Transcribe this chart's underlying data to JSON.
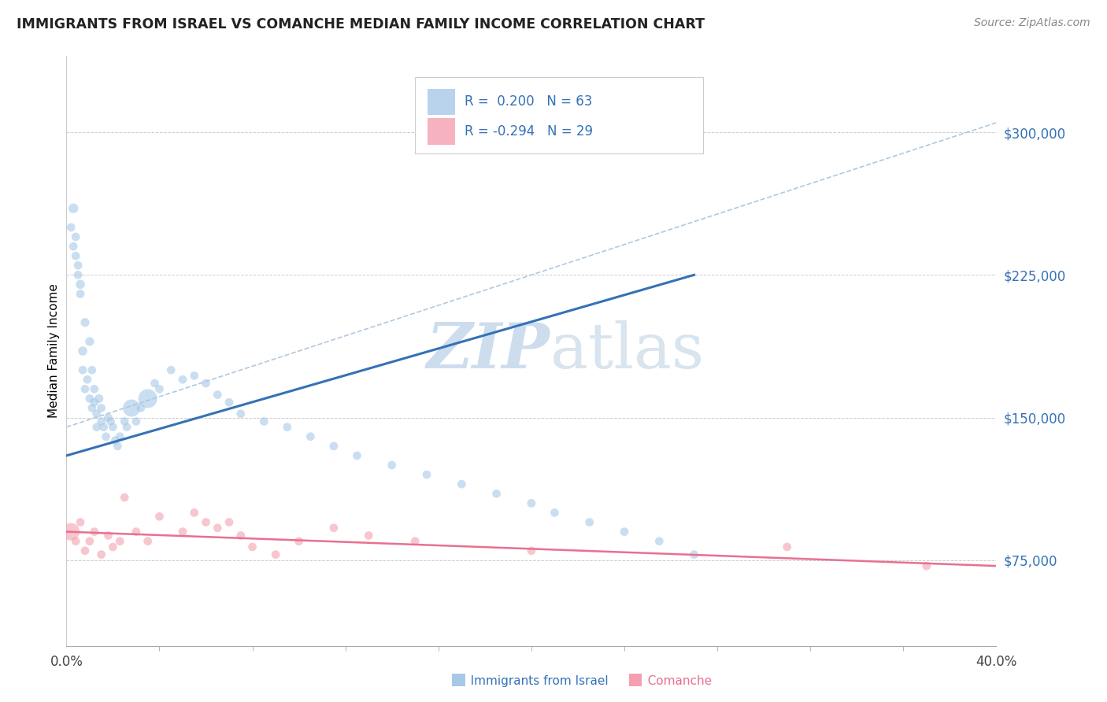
{
  "title": "IMMIGRANTS FROM ISRAEL VS COMANCHE MEDIAN FAMILY INCOME CORRELATION CHART",
  "source": "Source: ZipAtlas.com",
  "ylabel": "Median Family Income",
  "legend_label1": "Immigrants from Israel",
  "legend_label2": "Comanche",
  "r1": 0.2,
  "n1": 63,
  "r2": -0.294,
  "n2": 29,
  "blue_color": "#a8c8e8",
  "pink_color": "#f4a0b0",
  "blue_line_color": "#3472b5",
  "pink_line_color": "#e87090",
  "dashed_line_color": "#b0c8e0",
  "grid_color": "#cccccc",
  "ytick_color": "#3472b5",
  "ytick_labels": [
    "$75,000",
    "$150,000",
    "$225,000",
    "$300,000"
  ],
  "ytick_values": [
    75000,
    150000,
    225000,
    300000
  ],
  "ylim": [
    30000,
    340000
  ],
  "xlim": [
    0.0,
    0.4
  ],
  "blue_scatter_x": [
    0.002,
    0.003,
    0.003,
    0.004,
    0.004,
    0.005,
    0.005,
    0.006,
    0.006,
    0.007,
    0.007,
    0.008,
    0.008,
    0.009,
    0.01,
    0.01,
    0.011,
    0.011,
    0.012,
    0.012,
    0.013,
    0.013,
    0.014,
    0.015,
    0.015,
    0.016,
    0.017,
    0.018,
    0.019,
    0.02,
    0.021,
    0.022,
    0.023,
    0.025,
    0.026,
    0.028,
    0.03,
    0.032,
    0.035,
    0.038,
    0.04,
    0.045,
    0.05,
    0.055,
    0.06,
    0.065,
    0.07,
    0.075,
    0.085,
    0.095,
    0.105,
    0.115,
    0.125,
    0.14,
    0.155,
    0.17,
    0.185,
    0.2,
    0.21,
    0.225,
    0.24,
    0.255,
    0.27
  ],
  "blue_scatter_y": [
    250000,
    260000,
    240000,
    235000,
    245000,
    225000,
    230000,
    215000,
    220000,
    175000,
    185000,
    200000,
    165000,
    170000,
    190000,
    160000,
    175000,
    155000,
    165000,
    158000,
    152000,
    145000,
    160000,
    148000,
    155000,
    145000,
    140000,
    150000,
    148000,
    145000,
    138000,
    135000,
    140000,
    148000,
    145000,
    155000,
    148000,
    155000,
    160000,
    168000,
    165000,
    175000,
    170000,
    172000,
    168000,
    162000,
    158000,
    152000,
    148000,
    145000,
    140000,
    135000,
    130000,
    125000,
    120000,
    115000,
    110000,
    105000,
    100000,
    95000,
    90000,
    85000,
    78000
  ],
  "blue_scatter_sizes": [
    60,
    80,
    60,
    60,
    60,
    60,
    60,
    60,
    70,
    60,
    70,
    65,
    60,
    60,
    65,
    60,
    60,
    60,
    60,
    60,
    60,
    60,
    65,
    60,
    60,
    60,
    60,
    60,
    60,
    60,
    60,
    60,
    60,
    60,
    60,
    250,
    60,
    60,
    300,
    60,
    60,
    60,
    60,
    60,
    60,
    60,
    60,
    60,
    60,
    60,
    60,
    60,
    60,
    60,
    60,
    60,
    60,
    60,
    60,
    60,
    60,
    60,
    60
  ],
  "pink_scatter_x": [
    0.002,
    0.004,
    0.006,
    0.008,
    0.01,
    0.012,
    0.015,
    0.018,
    0.02,
    0.023,
    0.025,
    0.03,
    0.035,
    0.04,
    0.05,
    0.055,
    0.06,
    0.065,
    0.07,
    0.075,
    0.08,
    0.09,
    0.1,
    0.115,
    0.13,
    0.15,
    0.2,
    0.31,
    0.37
  ],
  "pink_scatter_y": [
    90000,
    85000,
    95000,
    80000,
    85000,
    90000,
    78000,
    88000,
    82000,
    85000,
    108000,
    90000,
    85000,
    98000,
    90000,
    100000,
    95000,
    92000,
    95000,
    88000,
    82000,
    78000,
    85000,
    92000,
    88000,
    85000,
    80000,
    82000,
    72000
  ],
  "pink_scatter_sizes": [
    250,
    60,
    60,
    60,
    60,
    60,
    60,
    60,
    60,
    60,
    60,
    60,
    60,
    60,
    60,
    60,
    60,
    60,
    60,
    60,
    60,
    60,
    60,
    60,
    60,
    60,
    60,
    60,
    60
  ],
  "blue_line_x": [
    0.0,
    0.27
  ],
  "blue_line_y": [
    130000,
    225000
  ],
  "pink_line_x": [
    0.0,
    0.4
  ],
  "pink_line_y": [
    90000,
    72000
  ],
  "dash_line_x": [
    0.0,
    0.4
  ],
  "dash_line_y": [
    145000,
    305000
  ]
}
